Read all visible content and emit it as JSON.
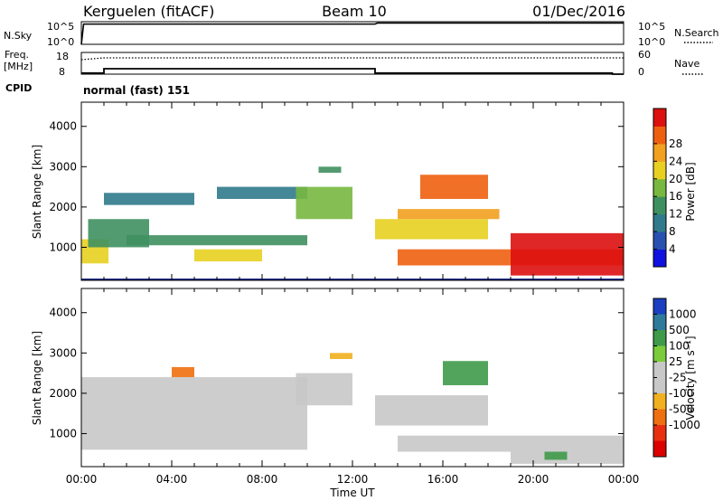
{
  "header": {
    "station": "Kerguelen (fitACF)",
    "beam": "Beam 10",
    "date": "01/Dec/2016"
  },
  "panels": {
    "nsky_label": "N.Sky",
    "nsky_ticks": [
      "10^5",
      "10^0"
    ],
    "nsearch_label": "N.Search",
    "nsearch_ticks": [
      "10^5",
      "10^0"
    ],
    "freq_label_1": "Freq.",
    "freq_label_2": "[MHz]",
    "freq_ticks": [
      "18",
      "8"
    ],
    "nave_label": "Nave",
    "nave_ticks": [
      "60",
      "0"
    ],
    "cpid_label": "CPID",
    "cpid_value": "normal (fast) 151"
  },
  "axes": {
    "time_ticks": [
      "00:00",
      "04:00",
      "08:00",
      "12:00",
      "16:00",
      "20:00",
      "00:00"
    ],
    "xlabel": "Time UT",
    "ylabel": "Slant Range [km]",
    "range_ticks": [
      "1000",
      "2000",
      "3000",
      "4000"
    ]
  },
  "power_colorbar": {
    "label": "Power [dB]",
    "ticks": [
      "4",
      "8",
      "12",
      "16",
      "20",
      "24",
      "28"
    ],
    "colors": [
      "#1010e0",
      "#2850b0",
      "#307a8c",
      "#3f9060",
      "#78b840",
      "#e8d020",
      "#f2a020",
      "#ee6010",
      "#dd1010"
    ]
  },
  "velocity_colorbar": {
    "label": "Velocity [m s⁻¹]",
    "ticks": [
      "1000",
      "500",
      "100",
      "25",
      "-25",
      "-100",
      "-500",
      "-1000"
    ],
    "colors": [
      "#1a3fc0",
      "#2f7a9a",
      "#3f9a4a",
      "#7bcc3a",
      "#c8c8c8",
      "#c8c8c8",
      "#f0b020",
      "#ee7010",
      "#e83010",
      "#dd0000"
    ]
  },
  "chart_data": [
    {
      "type": "line",
      "series": [
        {
          "name": "N.Sky",
          "x": [
            0,
            0.1,
            13,
            13.1,
            24
          ],
          "y": [
            0,
            30000,
            30000,
            50000,
            50000
          ]
        }
      ],
      "ylim": [
        1,
        100000
      ]
    },
    {
      "type": "line",
      "series": [
        {
          "name": "Freq.",
          "x": [
            0,
            1,
            1,
            13,
            13,
            23.5,
            23.5,
            24
          ],
          "y": [
            8.5,
            8.5,
            10.5,
            10.5,
            8.5,
            8.5,
            8,
            8
          ]
        },
        {
          "name": "Nave",
          "x": [
            0,
            1,
            24
          ],
          "y": [
            40,
            45,
            45
          ]
        }
      ],
      "ylim": [
        8,
        18
      ]
    },
    {
      "type": "heatmap",
      "xlabel": "Time UT",
      "ylabel": "Slant Range [km]",
      "xlim": [
        0,
        24
      ],
      "ylim": [
        180,
        4600
      ],
      "colorbar_label": "Power [dB]",
      "vlim": [
        0,
        32
      ],
      "regions": [
        {
          "t0": 0.0,
          "t1": 1.2,
          "r0": 600,
          "r1": 1200,
          "v": 20
        },
        {
          "t0": 0.3,
          "t1": 3.0,
          "r0": 1000,
          "r1": 1700,
          "v": 12
        },
        {
          "t0": 1.0,
          "t1": 5.0,
          "r0": 2050,
          "r1": 2350,
          "v": 8
        },
        {
          "t0": 2.0,
          "t1": 10.0,
          "r0": 1050,
          "r1": 1300,
          "v": 14
        },
        {
          "t0": 5.0,
          "t1": 8.0,
          "r0": 650,
          "r1": 950,
          "v": 20
        },
        {
          "t0": 6.0,
          "t1": 10.0,
          "r0": 2200,
          "r1": 2500,
          "v": 9
        },
        {
          "t0": 9.5,
          "t1": 12.0,
          "r0": 1700,
          "r1": 2500,
          "v": 16
        },
        {
          "t0": 10.5,
          "t1": 11.5,
          "r0": 2850,
          "r1": 3000,
          "v": 14
        },
        {
          "t0": 13.0,
          "t1": 18.0,
          "r0": 1200,
          "r1": 1700,
          "v": 18
        },
        {
          "t0": 14.0,
          "t1": 18.5,
          "r0": 1700,
          "r1": 1950,
          "v": 24
        },
        {
          "t0": 15.0,
          "t1": 18.0,
          "r0": 2200,
          "r1": 2800,
          "v": 26
        },
        {
          "t0": 14.0,
          "t1": 24.0,
          "r0": 550,
          "r1": 950,
          "v": 26
        },
        {
          "t0": 19.0,
          "t1": 24.0,
          "r0": 300,
          "r1": 1350,
          "v": 29
        }
      ]
    },
    {
      "type": "heatmap",
      "xlabel": "Time UT",
      "ylabel": "Slant Range [km]",
      "xlim": [
        0,
        24
      ],
      "ylim": [
        180,
        4600
      ],
      "colorbar_label": "Velocity [m s⁻¹]",
      "vlim": [
        -1000,
        1000
      ],
      "regions": [
        {
          "t0": 0.0,
          "t1": 10.0,
          "r0": 600,
          "r1": 2400,
          "v": 0
        },
        {
          "t0": 4.0,
          "t1": 5.0,
          "r0": 2400,
          "r1": 2650,
          "v": -200
        },
        {
          "t0": 9.5,
          "t1": 12.0,
          "r0": 1700,
          "r1": 2500,
          "v": 0
        },
        {
          "t0": 11.0,
          "t1": 12.0,
          "r0": 2850,
          "r1": 3000,
          "v": -60
        },
        {
          "t0": 13.0,
          "t1": 18.0,
          "r0": 1200,
          "r1": 1950,
          "v": 0
        },
        {
          "t0": 16.0,
          "t1": 18.0,
          "r0": 2200,
          "r1": 2800,
          "v": 60
        },
        {
          "t0": 14.0,
          "t1": 24.0,
          "r0": 550,
          "r1": 950,
          "v": 0
        },
        {
          "t0": 19.0,
          "t1": 24.0,
          "r0": 250,
          "r1": 550,
          "v": 0
        },
        {
          "t0": 20.5,
          "t1": 21.5,
          "r0": 350,
          "r1": 550,
          "v": 80
        }
      ]
    }
  ]
}
